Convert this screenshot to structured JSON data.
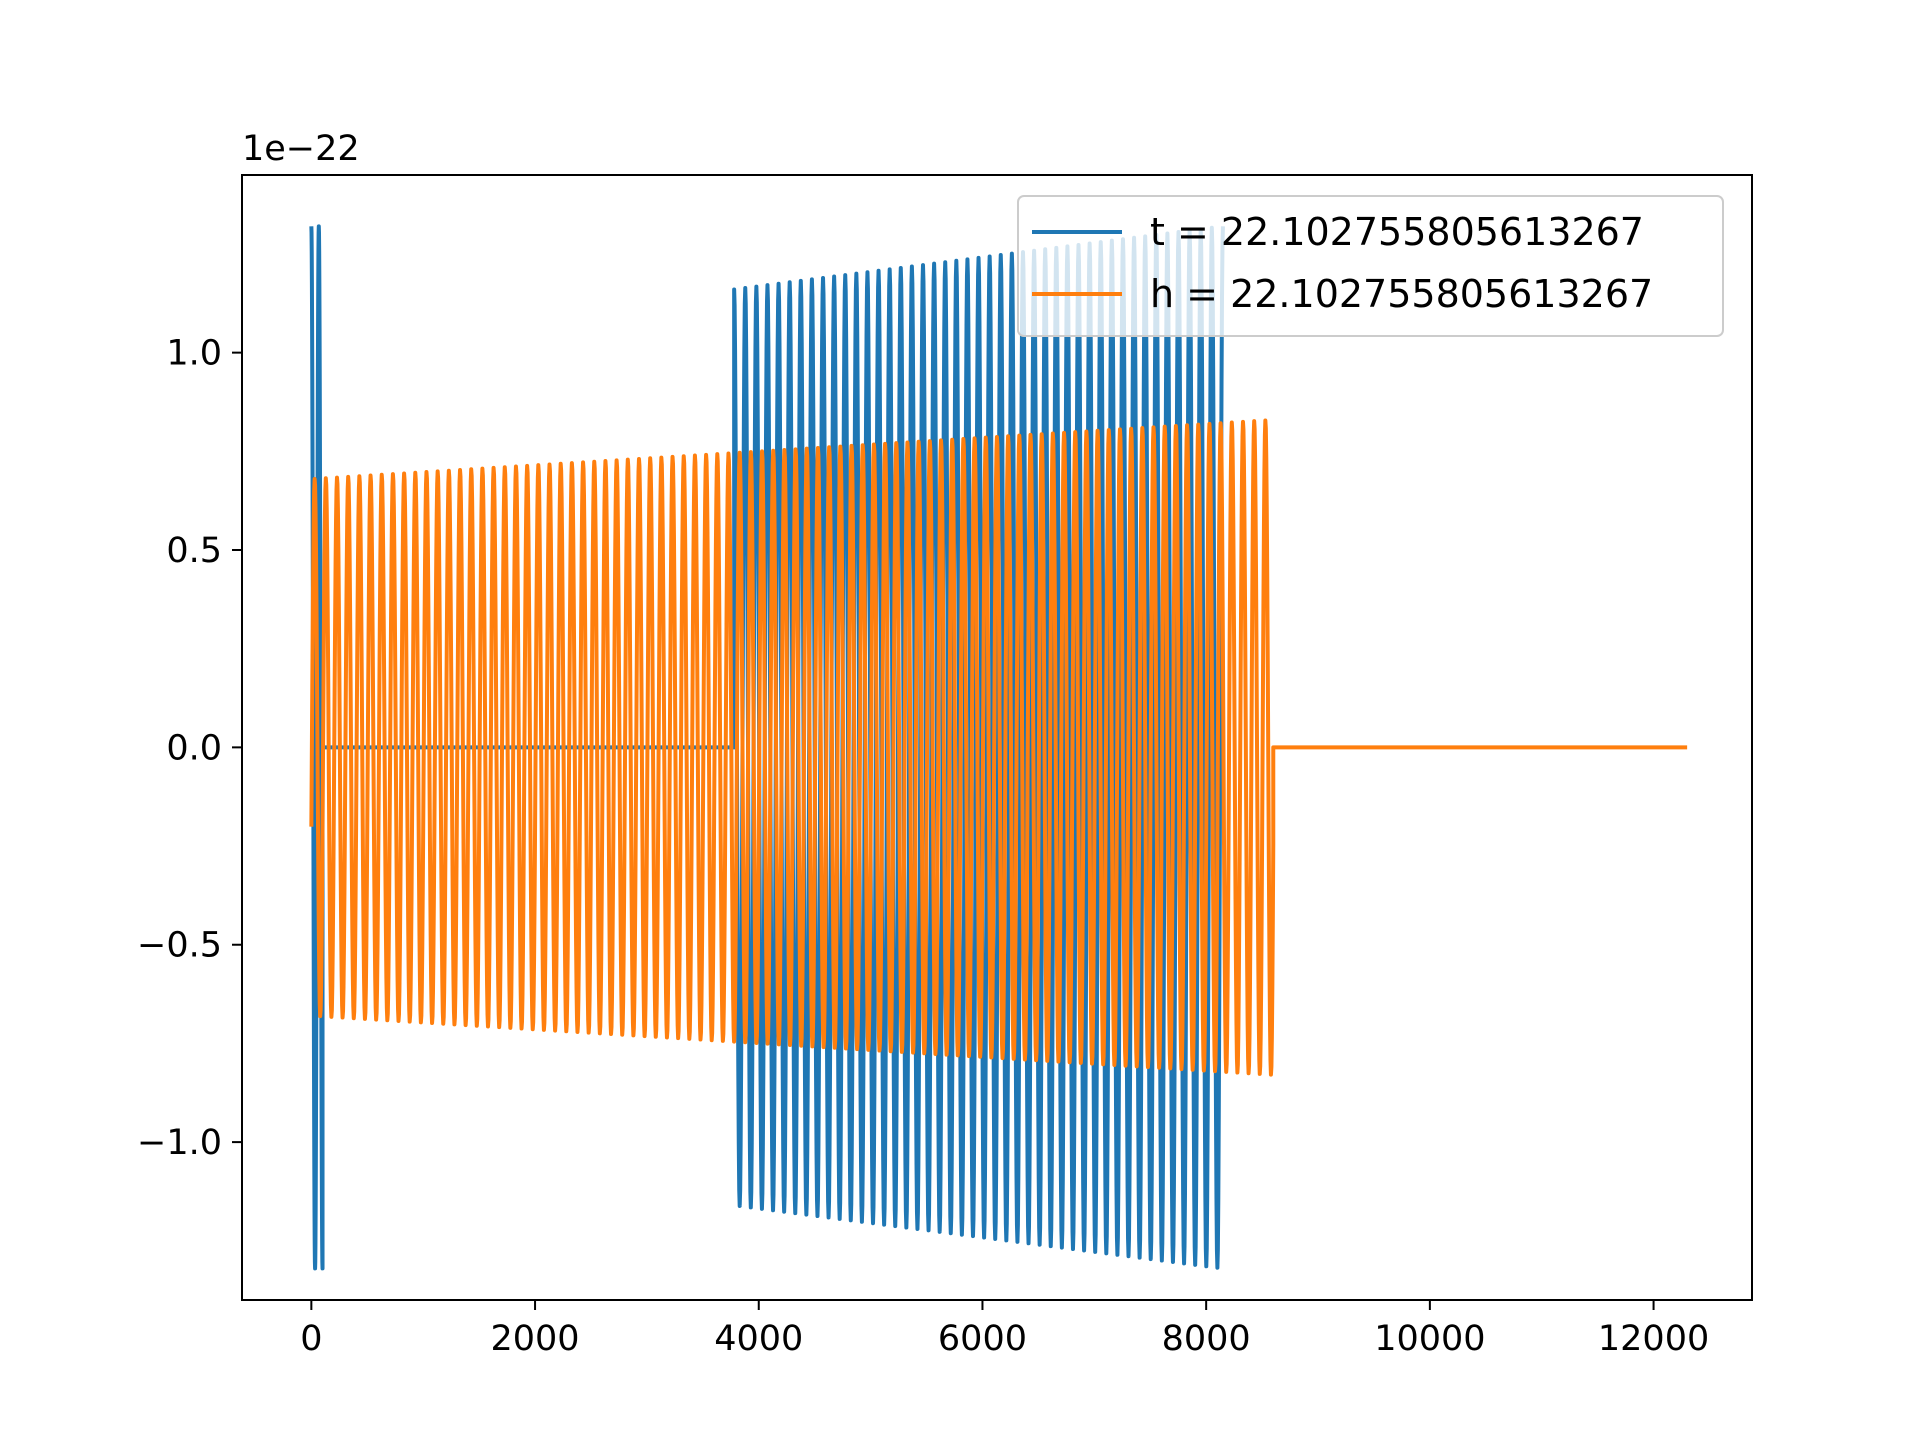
{
  "chart_data": {
    "type": "line",
    "title": "",
    "xlabel": "",
    "ylabel": "",
    "y_offset_label": "1e−22",
    "xlim": [
      -620,
      12880
    ],
    "ylim": [
      -1.4,
      1.45
    ],
    "y_scale": 1e-22,
    "x_ticks": [
      0,
      2000,
      4000,
      6000,
      8000,
      10000,
      12000
    ],
    "x_tick_labels": [
      "0",
      "2000",
      "4000",
      "6000",
      "8000",
      "10000",
      "12000"
    ],
    "y_ticks": [
      -1.0,
      -0.5,
      0.0,
      0.5,
      1.0
    ],
    "y_tick_labels": [
      "−1.0",
      "−0.5",
      "0.0",
      "0.5",
      "1.0"
    ],
    "grid": false,
    "legend_position": "top-right",
    "series": [
      {
        "name": "t = 22.102755805613267",
        "color": "#1f77b4",
        "description": "inverted/roll-wrapped chirp: large burst near x=0, zero segment, then oscillation from x~3800 to x~8200",
        "segments": [
          {
            "x_start": 0,
            "x_end": 100,
            "amplitude_start": 1.32,
            "amplitude_end": 1.32,
            "cycles": 1.5
          },
          {
            "x_start": 100,
            "x_end": 3780,
            "amplitude_start": 0.0,
            "amplitude_end": 0.0,
            "cycles": 0
          },
          {
            "x_start": 3780,
            "x_end": 8150,
            "amplitude_start": 1.16,
            "amplitude_end": 1.32,
            "cycles": 44
          }
        ]
      },
      {
        "name": "h = 22.102755805613267",
        "color": "#ff7f0e",
        "description": "chirp oscillation from x=0 to x~8600, then zero to x~12300",
        "segments": [
          {
            "x_start": 0,
            "x_end": 8600,
            "amplitude_start": 0.68,
            "amplitude_end": 0.83,
            "cycles": 86
          },
          {
            "x_start": 8600,
            "x_end": 12300,
            "amplitude_start": 0.0,
            "amplitude_end": 0.0,
            "cycles": 0
          }
        ]
      }
    ]
  }
}
